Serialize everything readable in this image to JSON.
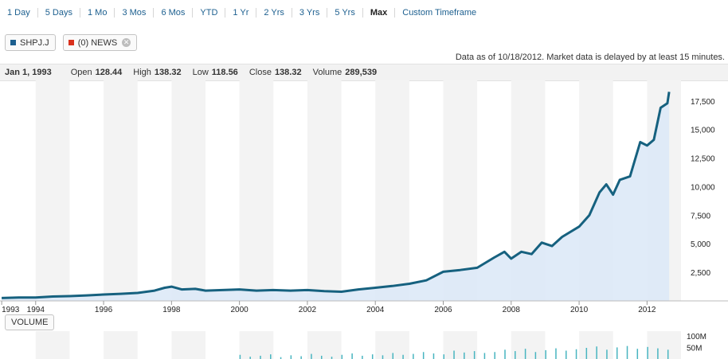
{
  "timeframes": [
    {
      "label": "1 Day"
    },
    {
      "label": "5 Days"
    },
    {
      "label": "1 Mo"
    },
    {
      "label": "3 Mos"
    },
    {
      "label": "6 Mos"
    },
    {
      "label": "YTD"
    },
    {
      "label": "1 Yr"
    },
    {
      "label": "2 Yrs"
    },
    {
      "label": "3 Yrs"
    },
    {
      "label": "5 Yrs"
    },
    {
      "label": "Max"
    },
    {
      "label": "Custom Timeframe"
    }
  ],
  "active_timeframe": "Max",
  "legend": {
    "symbol": "SHPJ.J",
    "symbol_color": "#1c5f8f",
    "news": "(0) NEWS",
    "news_color": "#d9301c"
  },
  "note": "Data as of 10/18/2012. Market data is delayed by at least 15 minutes.",
  "quote": {
    "date": "Jan 1, 1993",
    "open_label": "Open",
    "open": "128.44",
    "high_label": "High",
    "high": "138.32",
    "low_label": "Low",
    "low": "118.56",
    "close_label": "Close",
    "close": "138.32",
    "volume_label": "Volume",
    "volume": "289,539"
  },
  "volume_label": "VOLUME",
  "colors": {
    "line": "#16617f",
    "fill": "#dbe8f7",
    "band": "#f3f3f3",
    "volume": "#48b5c0"
  },
  "chart_data": {
    "type": "area",
    "x_unit": "year",
    "x": [
      1993.0,
      1993.5,
      1994.0,
      1994.5,
      1995.0,
      1995.5,
      1996.0,
      1996.5,
      1997.0,
      1997.5,
      1997.8,
      1998.0,
      1998.3,
      1998.7,
      1999.0,
      1999.5,
      2000.0,
      2000.5,
      2001.0,
      2001.5,
      2002.0,
      2002.5,
      2003.0,
      2003.5,
      2004.0,
      2004.5,
      2005.0,
      2005.5,
      2006.0,
      2006.5,
      2007.0,
      2007.5,
      2007.8,
      2008.0,
      2008.3,
      2008.6,
      2008.9,
      2009.2,
      2009.5,
      2010.0,
      2010.3,
      2010.6,
      2010.8,
      2011.0,
      2011.2,
      2011.5,
      2011.8,
      2012.0,
      2012.2,
      2012.4,
      2012.6,
      2012.65
    ],
    "y": [
      250,
      290,
      300,
      380,
      420,
      480,
      560,
      620,
      700,
      900,
      1150,
      1250,
      1000,
      1050,
      900,
      950,
      1000,
      900,
      950,
      900,
      950,
      850,
      800,
      1000,
      1150,
      1300,
      1500,
      1800,
      2550,
      2700,
      2900,
      3800,
      4300,
      3700,
      4300,
      4100,
      5100,
      4800,
      5600,
      6500,
      7500,
      9500,
      10200,
      9300,
      10600,
      10900,
      13900,
      13600,
      14100,
      16900,
      17300,
      18300
    ],
    "ylim": [
      0,
      19300
    ],
    "yticks": [
      2500,
      5000,
      7500,
      10000,
      12500,
      15000,
      17500
    ],
    "ytick_labels": [
      "2,500",
      "5,000",
      "7,500",
      "10,000",
      "12,500",
      "15,000",
      "17,500"
    ],
    "xticks": [
      1993,
      1994,
      1996,
      1998,
      2000,
      2002,
      2004,
      2006,
      2008,
      2010,
      2012
    ],
    "xtick_labels": [
      "1993",
      "1994",
      "1996",
      "1998",
      "2000",
      "2002",
      "2004",
      "2006",
      "2008",
      "2010",
      "2012"
    ],
    "xlim": [
      1992.95,
      2013.0
    ],
    "volume": {
      "ylim": [
        0,
        120
      ],
      "unit": "M",
      "yticks": [
        50,
        100
      ],
      "ytick_labels": [
        "50M",
        "100M"
      ],
      "x": [
        2000.0,
        2000.3,
        2000.6,
        2000.9,
        2001.2,
        2001.5,
        2001.8,
        2002.1,
        2002.4,
        2002.7,
        2003.0,
        2003.3,
        2003.6,
        2003.9,
        2004.2,
        2004.5,
        2004.8,
        2005.1,
        2005.4,
        2005.7,
        2006.0,
        2006.3,
        2006.6,
        2006.9,
        2007.2,
        2007.5,
        2007.8,
        2008.1,
        2008.4,
        2008.7,
        2009.0,
        2009.3,
        2009.6,
        2009.9,
        2010.2,
        2010.5,
        2010.8,
        2011.1,
        2011.4,
        2011.7,
        2012.0,
        2012.3,
        2012.6
      ],
      "values": [
        18,
        10,
        14,
        20,
        8,
        16,
        12,
        22,
        14,
        10,
        18,
        24,
        14,
        20,
        16,
        26,
        18,
        22,
        30,
        24,
        20,
        36,
        28,
        34,
        26,
        30,
        40,
        34,
        44,
        30,
        38,
        46,
        36,
        42,
        48,
        54,
        40,
        50,
        56,
        44,
        52,
        46,
        40
      ]
    }
  }
}
